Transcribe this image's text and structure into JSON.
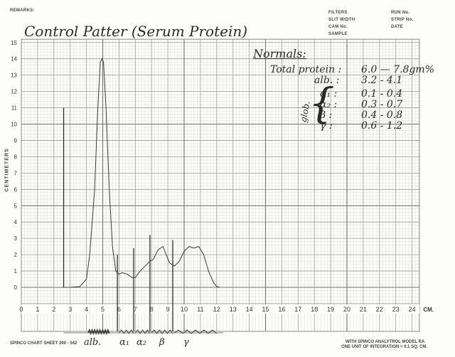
{
  "header": {
    "remarks_label": "REMARKS:",
    "fields_left": [
      "FILTERS",
      "SLIT WIDTH",
      "CAM No.",
      "SAMPLE"
    ],
    "fields_right": [
      "RUN No.",
      "STRIP No.",
      "DATE"
    ]
  },
  "title": "Control Patter (Serum Protein)",
  "notes": {
    "heading": "Normals:",
    "rows": [
      {
        "label": "Total protein :",
        "value": "6.0 — 7.8gm%"
      },
      {
        "label": "alb. :",
        "value": "3.2 - 4.1"
      },
      {
        "label": "α₁ :",
        "value": "0.1 - 0.4"
      },
      {
        "label": "α₂ :",
        "value": "0.3 - 0.7"
      },
      {
        "label": "β :",
        "value": "0.4 - 0.8"
      },
      {
        "label": "γ :",
        "value": "0.6 - 1.2"
      }
    ],
    "bracket_label": "glob."
  },
  "footer": {
    "left": "SPINCO CHART SHEET 300 - 542",
    "right_line1": "WITH SPINCO ANALYTROL MODEL RA",
    "right_line2": "ONE UNIT OF INTEGRATION = 0.1 SQ. CM."
  },
  "integration_labels": [
    "alb.",
    "α₁",
    "α₂",
    "β",
    "γ"
  ],
  "colors": {
    "paper": "#fdfdfb",
    "grid_minor": "#cfcfcf",
    "grid_major": "#8a8a8a",
    "ink": "#2a2a2a"
  },
  "chart_data": {
    "type": "line",
    "title": "",
    "xlabel": "CM.",
    "ylabel": "CENTIMETERS",
    "xlim": [
      0,
      25
    ],
    "ylim": [
      -1,
      15
    ],
    "x_ticks": [
      0,
      1,
      2,
      3,
      4,
      5,
      6,
      7,
      8,
      9,
      10,
      11,
      12,
      13,
      14,
      15,
      16,
      17,
      18,
      19,
      20,
      21,
      22,
      23,
      24
    ],
    "y_ticks": [
      0,
      1,
      2,
      3,
      4,
      5,
      6,
      7,
      8,
      9,
      10,
      11,
      12,
      13,
      14,
      15
    ],
    "x_unit_label": "CM.",
    "grid": true,
    "series": [
      {
        "name": "",
        "x": [
          2.5,
          3.0,
          3.6,
          4.0,
          4.2,
          4.5,
          4.7,
          4.85,
          4.95,
          5.05,
          5.2,
          5.4,
          5.6,
          5.8,
          6.0,
          6.2,
          6.5,
          6.8,
          7.0,
          7.3,
          7.6,
          7.9,
          8.1,
          8.4,
          8.7,
          8.9,
          9.1,
          9.4,
          9.7,
          10.0,
          10.3,
          10.6,
          10.9,
          11.2,
          11.5,
          11.8,
          12.0,
          12.2
        ],
        "y": [
          0.0,
          0.0,
          0.05,
          0.5,
          2.0,
          6.0,
          11.0,
          13.8,
          14.0,
          13.8,
          11.0,
          6.0,
          2.5,
          1.0,
          0.8,
          0.9,
          0.8,
          0.6,
          0.6,
          1.0,
          1.3,
          1.6,
          1.7,
          2.3,
          2.5,
          2.0,
          1.5,
          1.3,
          1.6,
          2.2,
          2.5,
          2.4,
          2.5,
          2.0,
          1.0,
          0.3,
          0.05,
          0.0
        ]
      }
    ],
    "markers": [
      {
        "x": 2.6,
        "y": 11.0
      },
      {
        "x": 5.9,
        "y": 2.0
      },
      {
        "x": 6.9,
        "y": 2.4
      },
      {
        "x": 7.9,
        "y": 3.2
      },
      {
        "x": 9.3,
        "y": 2.9
      }
    ]
  }
}
